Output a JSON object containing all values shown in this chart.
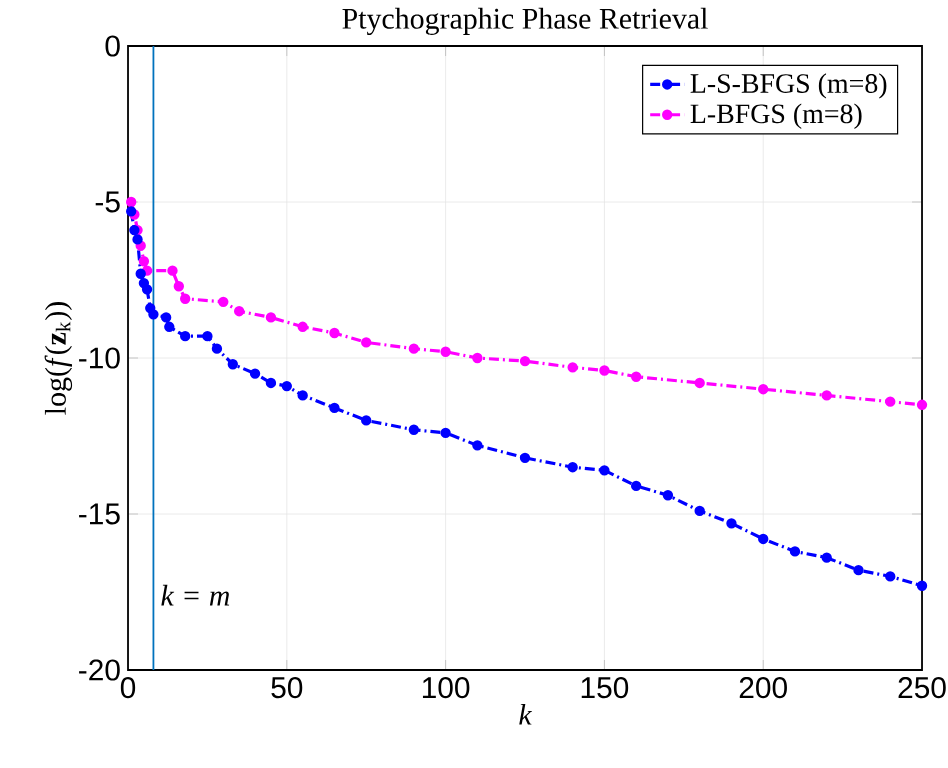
{
  "chart_data": {
    "type": "line",
    "title": "Ptychographic Phase Retrieval",
    "xlabel": "k",
    "ylabel": "log(*f*(**z**$_{k}$))",
    "xlim": [
      0,
      250
    ],
    "xticks": [
      0,
      50,
      100,
      150,
      200,
      250
    ],
    "ylim": [
      -20,
      0
    ],
    "yticks": [
      -20,
      -15,
      -10,
      -5,
      0
    ],
    "grid": true,
    "legend": "top right",
    "marker": "circle",
    "line_style": "dashed",
    "ref_lines": [
      {
        "axis": "x",
        "value": 8,
        "label": "k = m",
        "color": "#0072bd"
      }
    ],
    "series": [
      {
        "name": "L-S-BFGS (m=8)",
        "color": "#0000ff",
        "x": [
          1,
          2,
          3,
          4,
          5,
          6,
          7,
          8,
          12,
          13,
          18,
          25,
          28,
          33,
          40,
          45,
          50,
          55,
          65,
          75,
          90,
          100,
          110,
          125,
          140,
          150,
          160,
          170,
          180,
          190,
          200,
          210,
          220,
          230,
          240,
          250
        ],
        "values": [
          -5.3,
          -5.9,
          -6.2,
          -7.3,
          -7.6,
          -7.8,
          -8.4,
          -8.6,
          -8.7,
          -9.0,
          -9.3,
          -9.3,
          -9.7,
          -10.2,
          -10.5,
          -10.8,
          -10.9,
          -11.2,
          -11.6,
          -12.0,
          -12.3,
          -12.4,
          -12.8,
          -13.2,
          -13.5,
          -13.6,
          -14.1,
          -14.4,
          -14.9,
          -15.3,
          -15.8,
          -16.2,
          -16.4,
          -16.8,
          -17.0,
          -17.3
        ]
      },
      {
        "name": "L-BFGS (m=8)",
        "color": "#ff00ff",
        "x": [
          1,
          2,
          3,
          4,
          5,
          6,
          14,
          16,
          18,
          30,
          35,
          45,
          55,
          65,
          75,
          90,
          100,
          110,
          125,
          140,
          150,
          160,
          180,
          200,
          220,
          240,
          250
        ],
        "values": [
          -5.0,
          -5.4,
          -5.9,
          -6.4,
          -6.9,
          -7.2,
          -7.2,
          -7.7,
          -8.1,
          -8.2,
          -8.5,
          -8.7,
          -9.0,
          -9.2,
          -9.5,
          -9.7,
          -9.8,
          -10.0,
          -10.1,
          -10.3,
          -10.4,
          -10.6,
          -10.8,
          -11.0,
          -11.2,
          -11.4,
          -11.5
        ]
      }
    ]
  }
}
